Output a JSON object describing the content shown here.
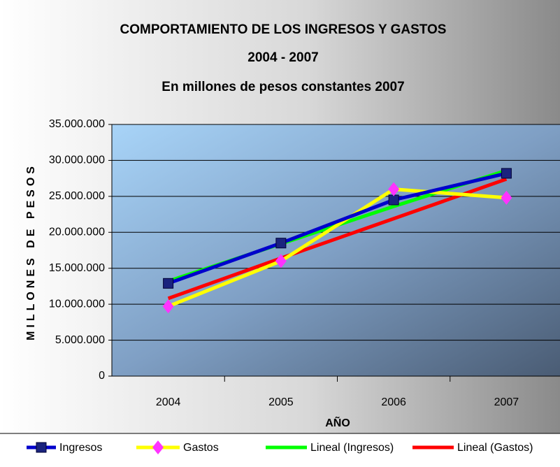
{
  "chart_data": {
    "type": "line",
    "title": [
      "COMPORTAMIENTO DE LOS INGRESOS Y GASTOS",
      "2004 - 2007",
      "En millones de pesos constantes 2007"
    ],
    "x_label": "AÑO",
    "y_label": "MILLONES DE PESOS",
    "categories": [
      "2004",
      "2005",
      "2006",
      "2007"
    ],
    "series": [
      {
        "name": "Ingresos",
        "color": "#0000cc",
        "marker": "square",
        "marker_color": "#1a237e",
        "values": [
          12900000,
          18500000,
          24500000,
          28200000
        ]
      },
      {
        "name": "Gastos",
        "color": "#ffff00",
        "marker": "diamond",
        "marker_color": "#ff33ff",
        "values": [
          9700000,
          16000000,
          26000000,
          24800000
        ]
      },
      {
        "name": "Lineal (Ingresos)",
        "color": "#00ff00",
        "values": [
          13200000,
          18400000,
          23600000,
          28600000
        ]
      },
      {
        "name": "Lineal (Gastos)",
        "color": "#ff0000",
        "values": [
          10800000,
          16400000,
          21900000,
          27400000
        ]
      }
    ],
    "ylim": [
      0,
      35000000
    ],
    "yticks": [
      0,
      {
        "value": 5000000,
        "label": "5.000.000"
      },
      {
        "value": 10000000,
        "label": "10.000.000"
      },
      {
        "value": 15000000,
        "label": "15.000.000"
      },
      {
        "value": 20000000,
        "label": "20.000.000"
      },
      {
        "value": 25000000,
        "label": "25.000.000"
      },
      {
        "value": 30000000,
        "label": "30.000.000"
      },
      {
        "value": 35000000,
        "label": "35.000.000"
      }
    ],
    "grid": true,
    "legend": "bottom"
  }
}
